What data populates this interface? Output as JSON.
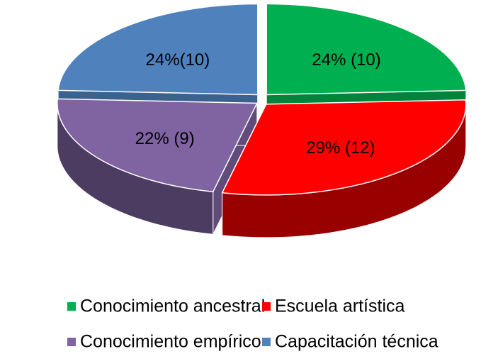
{
  "chart_data": {
    "type": "pie3d",
    "categories": [
      "Conocimiento ancestral",
      "Escuela artística",
      "Conocimiento empírico",
      "Capacitación técnica"
    ],
    "values": [
      24,
      29,
      22,
      24
    ],
    "value_labels": [
      "24% (10)",
      "29% (12)",
      "22% (9)",
      "24%(10)"
    ],
    "colors": [
      "#00b050",
      "#ff0000",
      "#8064a2",
      "#4f81bd"
    ],
    "legend": "bottom"
  }
}
